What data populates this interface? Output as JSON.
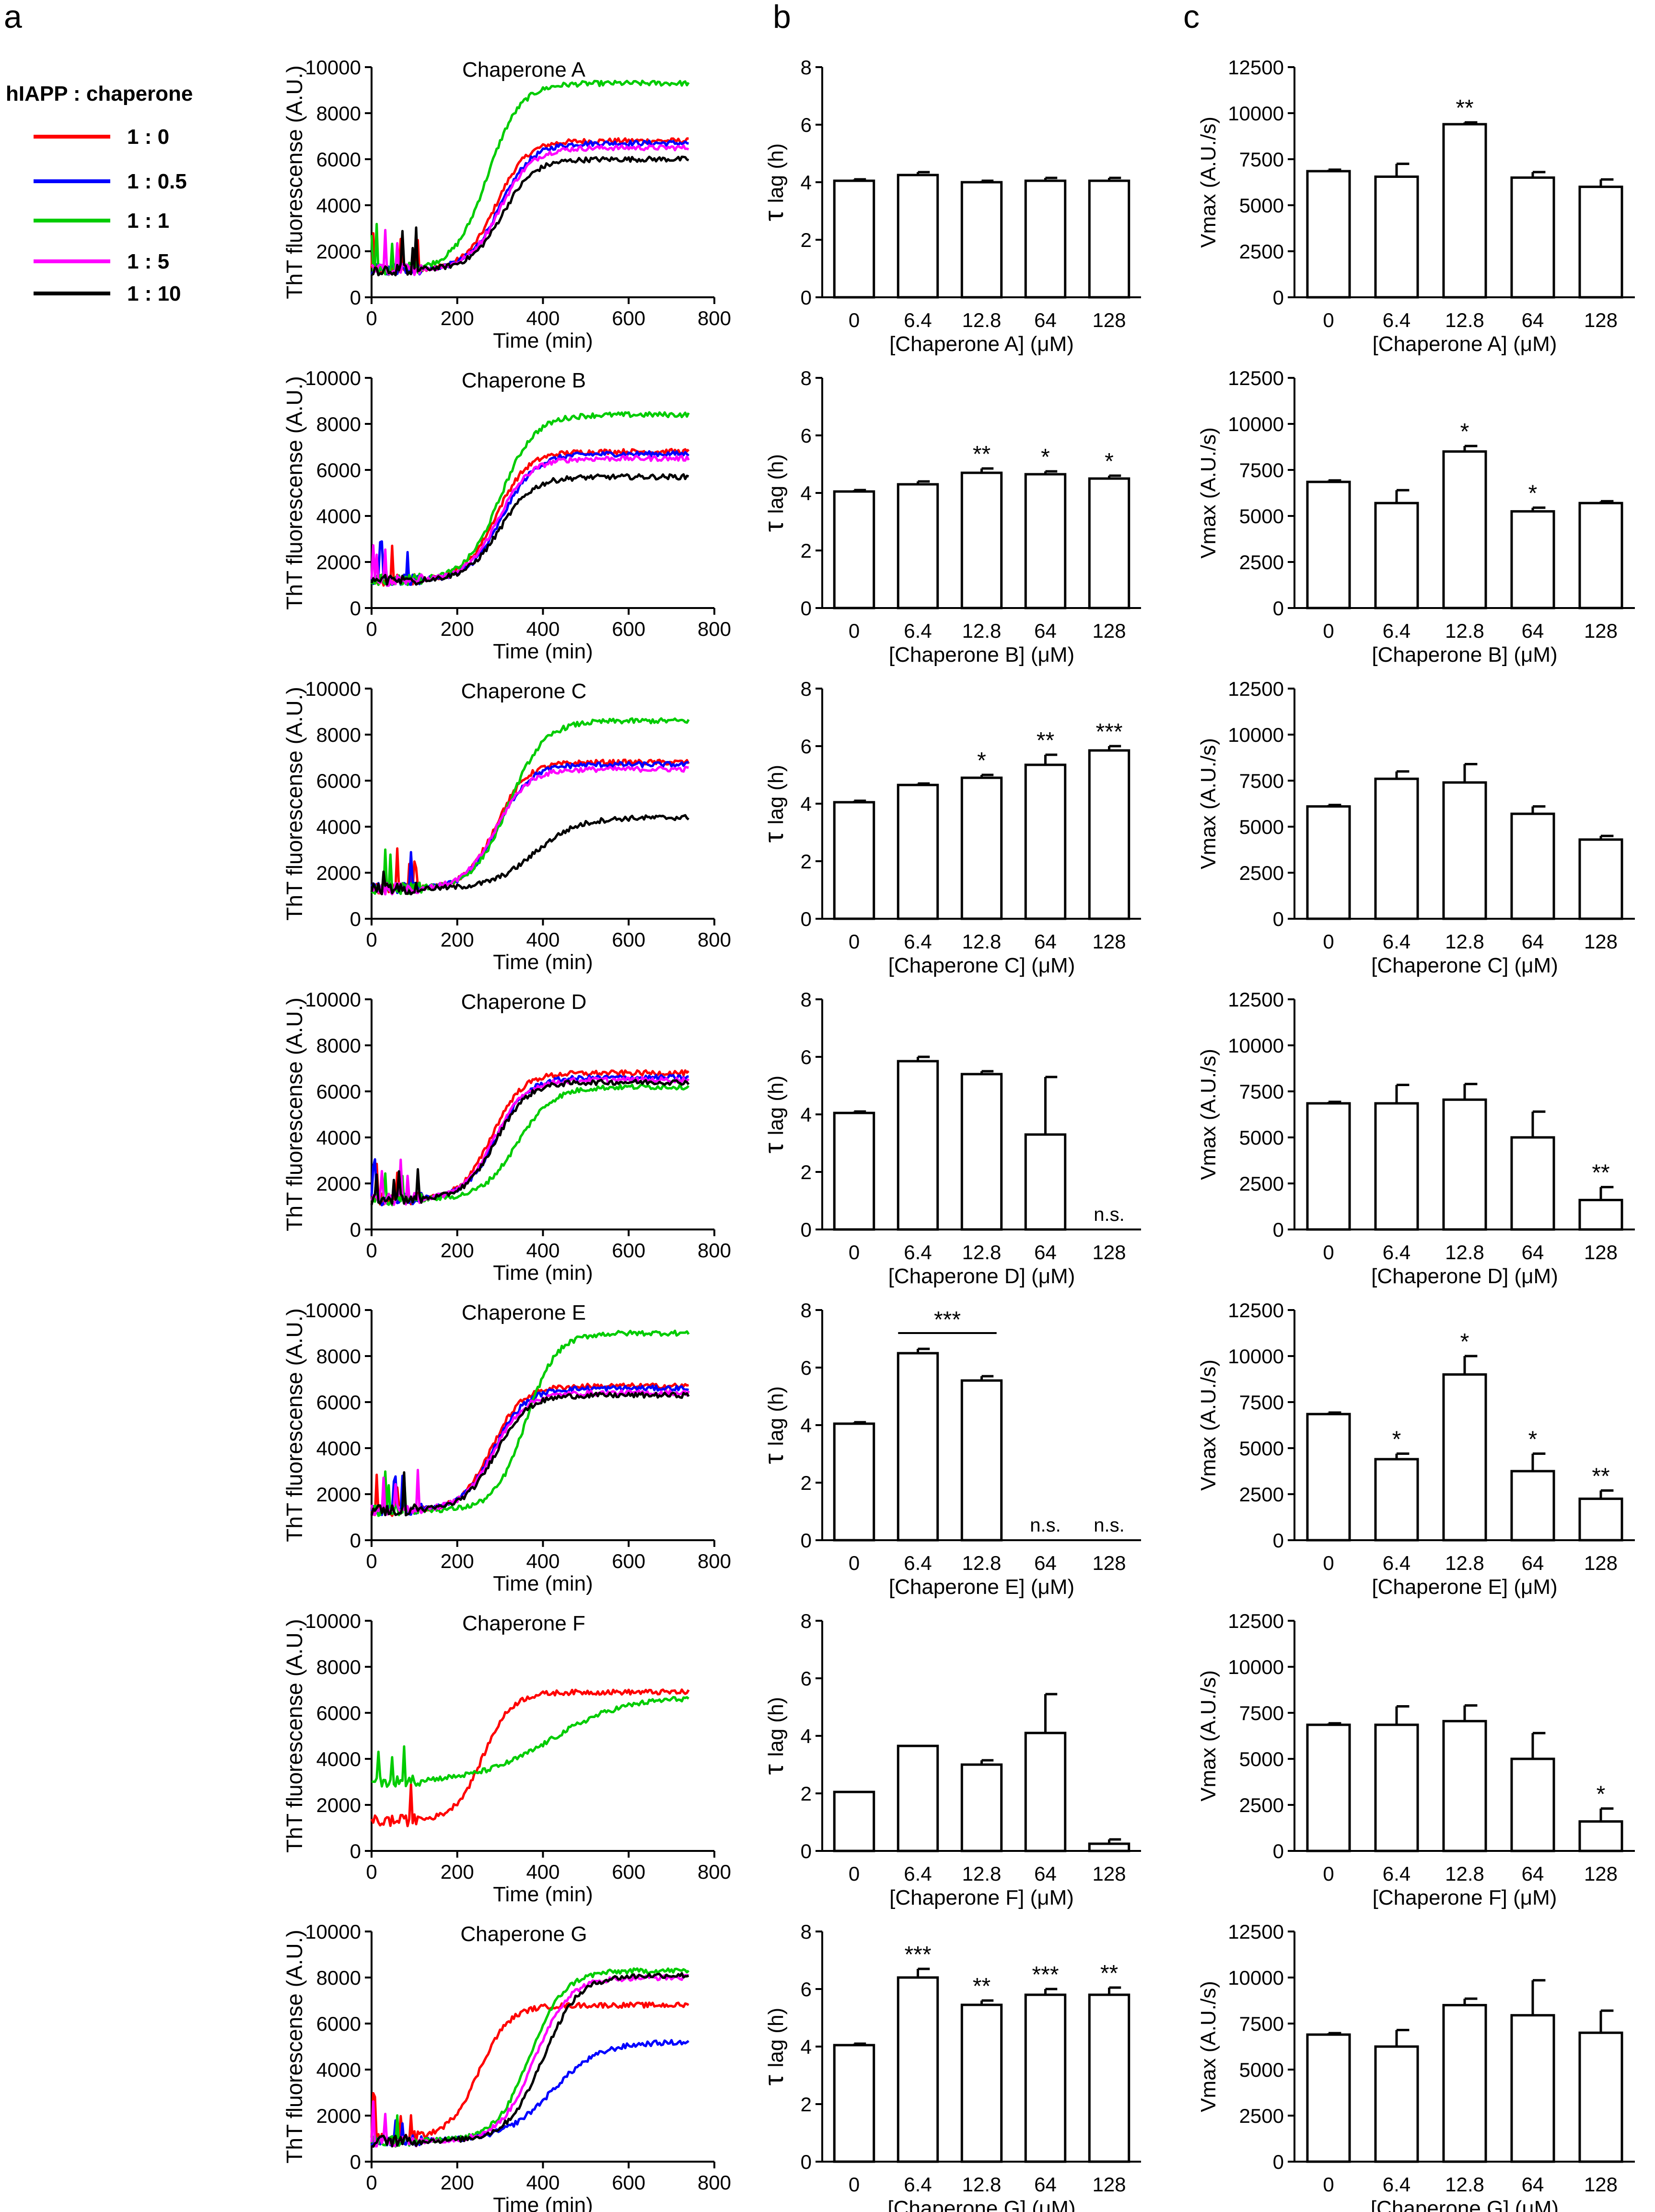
{
  "figure": {
    "panel_labels": {
      "a": "a",
      "b": "b",
      "c": "c"
    },
    "legend": {
      "title": "hIAPP  : chaperone",
      "entries": [
        {
          "label": "1 : 0",
          "color": "#ff0000"
        },
        {
          "label": "1 : 0.5",
          "color": "#0000ff"
        },
        {
          "label": "1 : 1",
          "color": "#00cc00"
        },
        {
          "label": "1 : 5",
          "color": "#ff00ff"
        },
        {
          "label": "1 : 10",
          "color": "#000000"
        }
      ]
    },
    "units": {
      "tau_symbol": "τ",
      "tau_label": "lag (h)",
      "vmax_label": "Vmax (A.U./s)",
      "curve_ylabel": "ThT fluorescense (A.U.)",
      "curve_xlabel": "Time (min)"
    }
  },
  "chart_data": [
    {
      "type": "line",
      "title": "Chaperone A",
      "xlabel": "Time (min)",
      "ylabel": "ThT fluorescense (A.U.)",
      "xlim": [
        0,
        800
      ],
      "ylim": [
        0,
        10000
      ],
      "xticks": [
        0,
        200,
        400,
        600,
        800
      ],
      "yticks": [
        0,
        2000,
        4000,
        6000,
        8000,
        10000
      ],
      "series": [
        {
          "name": "1 : 0",
          "color": "#ff0000",
          "base": 1200,
          "plateau": 6800,
          "mid": 290,
          "k": 0.028
        },
        {
          "name": "1 : 0.5",
          "color": "#0000ff",
          "base": 1200,
          "plateau": 6700,
          "mid": 300,
          "k": 0.027
        },
        {
          "name": "1 : 1",
          "color": "#00cc00",
          "base": 1200,
          "plateau": 9300,
          "mid": 270,
          "k": 0.026
        },
        {
          "name": "1 : 5",
          "color": "#ff00ff",
          "base": 1200,
          "plateau": 6500,
          "mid": 300,
          "k": 0.027
        },
        {
          "name": "1 : 10",
          "color": "#000000",
          "base": 1200,
          "plateau": 6000,
          "mid": 305,
          "k": 0.027
        }
      ]
    },
    {
      "type": "line",
      "title": "Chaperone B",
      "xlabel": "Time (min)",
      "ylabel": "ThT fluorescense (A.U.)",
      "xlim": [
        0,
        800
      ],
      "ylim": [
        0,
        10000
      ],
      "xticks": [
        0,
        200,
        400,
        600,
        800
      ],
      "yticks": [
        0,
        2000,
        4000,
        6000,
        8000,
        10000
      ],
      "series": [
        {
          "name": "1 : 0",
          "color": "#ff0000",
          "base": 1200,
          "plateau": 6800,
          "mid": 290,
          "k": 0.027
        },
        {
          "name": "1 : 0.5",
          "color": "#0000ff",
          "base": 1200,
          "plateau": 6700,
          "mid": 305,
          "k": 0.026
        },
        {
          "name": "1 : 1",
          "color": "#00cc00",
          "base": 1200,
          "plateau": 8400,
          "mid": 300,
          "k": 0.025
        },
        {
          "name": "1 : 5",
          "color": "#ff00ff",
          "base": 1200,
          "plateau": 6500,
          "mid": 295,
          "k": 0.027
        },
        {
          "name": "1 : 10",
          "color": "#000000",
          "base": 1200,
          "plateau": 5700,
          "mid": 300,
          "k": 0.026
        }
      ]
    },
    {
      "type": "line",
      "title": "Chaperone C",
      "xlabel": "Time (min)",
      "ylabel": "ThT fluorescense (A.U.)",
      "xlim": [
        0,
        800
      ],
      "ylim": [
        0,
        10000
      ],
      "xticks": [
        0,
        200,
        400,
        600,
        800
      ],
      "yticks": [
        0,
        2000,
        4000,
        6000,
        8000,
        10000
      ],
      "series": [
        {
          "name": "1 : 0",
          "color": "#ff0000",
          "base": 1300,
          "plateau": 6800,
          "mid": 290,
          "k": 0.028
        },
        {
          "name": "1 : 0.5",
          "color": "#0000ff",
          "base": 1300,
          "plateau": 6700,
          "mid": 295,
          "k": 0.027
        },
        {
          "name": "1 : 1",
          "color": "#00cc00",
          "base": 1300,
          "plateau": 8600,
          "mid": 320,
          "k": 0.024
        },
        {
          "name": "1 : 5",
          "color": "#ff00ff",
          "base": 1300,
          "plateau": 6500,
          "mid": 290,
          "k": 0.027
        },
        {
          "name": "1 : 10",
          "color": "#000000",
          "base": 1300,
          "plateau": 4400,
          "mid": 380,
          "k": 0.02
        }
      ]
    },
    {
      "type": "line",
      "title": "Chaperone D",
      "xlabel": "Time (min)",
      "ylabel": "ThT fluorescense (A.U.)",
      "xlim": [
        0,
        800
      ],
      "ylim": [
        0,
        10000
      ],
      "xticks": [
        0,
        200,
        400,
        600,
        800
      ],
      "yticks": [
        0,
        2000,
        4000,
        6000,
        8000,
        10000
      ],
      "series": [
        {
          "name": "1 : 0",
          "color": "#ff0000",
          "base": 1300,
          "plateau": 6800,
          "mid": 280,
          "k": 0.028
        },
        {
          "name": "1 : 0.5",
          "color": "#0000ff",
          "base": 1300,
          "plateau": 6600,
          "mid": 290,
          "k": 0.027
        },
        {
          "name": "1 : 1",
          "color": "#00cc00",
          "base": 1300,
          "plateau": 6200,
          "mid": 340,
          "k": 0.024
        },
        {
          "name": "1 : 5",
          "color": "#ff00ff",
          "base": 1300,
          "plateau": 6500,
          "mid": 285,
          "k": 0.027
        },
        {
          "name": "1 : 10",
          "color": "#000000",
          "base": 1300,
          "plateau": 6400,
          "mid": 290,
          "k": 0.027
        }
      ]
    },
    {
      "type": "line",
      "title": "Chaperone E",
      "xlabel": "Time (min)",
      "ylabel": "ThT fluorescense (A.U.)",
      "xlim": [
        0,
        800
      ],
      "ylim": [
        0,
        10000
      ],
      "xticks": [
        0,
        200,
        400,
        600,
        800
      ],
      "yticks": [
        0,
        2000,
        4000,
        6000,
        8000,
        10000
      ],
      "series": [
        {
          "name": "1 : 0",
          "color": "#ff0000",
          "base": 1300,
          "plateau": 6700,
          "mid": 280,
          "k": 0.028
        },
        {
          "name": "1 : 0.5",
          "color": "#0000ff",
          "base": 1300,
          "plateau": 6600,
          "mid": 285,
          "k": 0.027
        },
        {
          "name": "1 : 1",
          "color": "#00cc00",
          "base": 1300,
          "plateau": 9000,
          "mid": 360,
          "k": 0.028
        },
        {
          "name": "1 : 5",
          "color": "#ff00ff",
          "base": 1300,
          "plateau": 6400,
          "mid": 285,
          "k": 0.027
        },
        {
          "name": "1 : 10",
          "color": "#000000",
          "base": 1300,
          "plateau": 6300,
          "mid": 290,
          "k": 0.027
        }
      ]
    },
    {
      "type": "line",
      "title": "Chaperone F",
      "xlabel": "Time (min)",
      "ylabel": "ThT fluorescense (A.U.)",
      "xlim": [
        0,
        800
      ],
      "ylim": [
        0,
        10000
      ],
      "xticks": [
        0,
        200,
        400,
        600,
        800
      ],
      "yticks": [
        0,
        2000,
        4000,
        6000,
        8000,
        10000
      ],
      "series": [
        {
          "name": "1 : 0",
          "color": "#ff0000",
          "base": 1300,
          "plateau": 6900,
          "mid": 260,
          "k": 0.03
        },
        {
          "name": "1 : 1",
          "color": "#00cc00",
          "base": 3000,
          "plateau": 6700,
          "mid": 420,
          "k": 0.012
        }
      ]
    },
    {
      "type": "line",
      "title": "Chaperone G",
      "xlabel": "Time (min)",
      "ylabel": "ThT fluorescense (A.U.)",
      "xlim": [
        0,
        800
      ],
      "ylim": [
        0,
        10000
      ],
      "xticks": [
        0,
        200,
        400,
        600,
        800
      ],
      "yticks": [
        0,
        2000,
        4000,
        6000,
        8000,
        10000
      ],
      "series": [
        {
          "name": "1 : 0",
          "color": "#ff0000",
          "base": 1000,
          "plateau": 6800,
          "mid": 250,
          "k": 0.028
        },
        {
          "name": "1 : 0.5",
          "color": "#0000ff",
          "base": 900,
          "plateau": 5200,
          "mid": 420,
          "k": 0.018
        },
        {
          "name": "1 : 1",
          "color": "#00cc00",
          "base": 900,
          "plateau": 8300,
          "mid": 370,
          "k": 0.025
        },
        {
          "name": "1 : 5",
          "color": "#ff00ff",
          "base": 900,
          "plateau": 8000,
          "mid": 380,
          "k": 0.025
        },
        {
          "name": "1 : 10",
          "color": "#000000",
          "base": 900,
          "plateau": 8100,
          "mid": 400,
          "k": 0.024
        }
      ]
    },
    {
      "type": "bar",
      "xlabel": "[Chaperone A] (μM)",
      "ylabel": "τ lag (h)",
      "categories": [
        "0",
        "6.4",
        "12.8",
        "64",
        "128"
      ],
      "values": [
        4.05,
        4.25,
        4.0,
        4.05,
        4.05
      ],
      "errors": [
        0.05,
        0.1,
        0.05,
        0.1,
        0.1
      ],
      "significance": [
        "",
        "",
        "",
        "",
        ""
      ],
      "ylim": [
        0,
        8
      ],
      "yticks": [
        0,
        2,
        4,
        6,
        8
      ]
    },
    {
      "type": "bar",
      "xlabel": "[Chaperone B] (μM)",
      "ylabel": "τ lag (h)",
      "categories": [
        "0",
        "6.4",
        "12.8",
        "64",
        "128"
      ],
      "values": [
        4.05,
        4.3,
        4.7,
        4.65,
        4.5
      ],
      "errors": [
        0.05,
        0.1,
        0.15,
        0.1,
        0.1
      ],
      "significance": [
        "",
        "",
        "**",
        "*",
        "*"
      ],
      "ylim": [
        0,
        8
      ],
      "yticks": [
        0,
        2,
        4,
        6,
        8
      ]
    },
    {
      "type": "bar",
      "xlabel": "[Chaperone C] (μM)",
      "ylabel": "τ lag (h)",
      "categories": [
        "0",
        "6.4",
        "12.8",
        "64",
        "128"
      ],
      "values": [
        4.05,
        4.65,
        4.9,
        5.35,
        5.85
      ],
      "errors": [
        0.05,
        0.05,
        0.1,
        0.35,
        0.15
      ],
      "significance": [
        "",
        "",
        "*",
        "**",
        "***"
      ],
      "ylim": [
        0,
        8
      ],
      "yticks": [
        0,
        2,
        4,
        6,
        8
      ]
    },
    {
      "type": "bar",
      "xlabel": "[Chaperone D] (μM)",
      "ylabel": "τ lag (h)",
      "categories": [
        "0",
        "6.4",
        "12.8",
        "64",
        "128"
      ],
      "values": [
        4.05,
        5.85,
        5.4,
        3.3,
        null
      ],
      "errors": [
        0.05,
        0.15,
        0.1,
        2.0,
        0
      ],
      "significance": [
        "",
        "",
        "",
        "",
        "n.s."
      ],
      "ylim": [
        0,
        8
      ],
      "yticks": [
        0,
        2,
        4,
        6,
        8
      ]
    },
    {
      "type": "bar",
      "xlabel": "[Chaperone E] (μM)",
      "ylabel": "τ lag (h)",
      "categories": [
        "0",
        "6.4",
        "12.8",
        "64",
        "128"
      ],
      "values": [
        4.05,
        6.5,
        5.55,
        null,
        null
      ],
      "errors": [
        0.05,
        0.15,
        0.15,
        0,
        0
      ],
      "significance": [
        "",
        "",
        "",
        "n.s.",
        "n.s."
      ],
      "bracket": {
        "from": 1,
        "to": 2,
        "label": "***"
      },
      "ylim": [
        0,
        8
      ],
      "yticks": [
        0,
        2,
        4,
        6,
        8
      ]
    },
    {
      "type": "bar",
      "xlabel": "[Chaperone F] (μM)",
      "ylabel": "τ lag (h)",
      "categories": [
        "0",
        "6.4",
        "12.8",
        "64",
        "128"
      ],
      "values": [
        2.05,
        3.65,
        3.0,
        4.1,
        0.25
      ],
      "errors": [
        0,
        0,
        0.15,
        1.35,
        0.15
      ],
      "significance": [
        "",
        "",
        "",
        "",
        ""
      ],
      "ylim": [
        0,
        8
      ],
      "yticks": [
        0,
        2,
        4,
        6,
        8
      ]
    },
    {
      "type": "bar",
      "xlabel": "[Chaperone G] (μM)",
      "ylabel": "τ lag (h)",
      "categories": [
        "0",
        "6.4",
        "12.8",
        "64",
        "128"
      ],
      "values": [
        4.05,
        6.4,
        5.45,
        5.8,
        5.8
      ],
      "errors": [
        0.05,
        0.3,
        0.15,
        0.2,
        0.25
      ],
      "significance": [
        "",
        "***",
        "**",
        "***",
        "**"
      ],
      "ylim": [
        0,
        8
      ],
      "yticks": [
        0,
        2,
        4,
        6,
        8
      ]
    },
    {
      "type": "bar",
      "xlabel": "[Chaperone A] (μM)",
      "ylabel": "Vmax (A.U./s)",
      "categories": [
        "0",
        "6.4",
        "12.8",
        "64",
        "128"
      ],
      "values": [
        6850,
        6550,
        9400,
        6500,
        6000
      ],
      "errors": [
        80,
        700,
        100,
        300,
        400
      ],
      "significance": [
        "",
        "",
        "**",
        "",
        ""
      ],
      "ylim": [
        0,
        12500
      ],
      "yticks": [
        0,
        2500,
        5000,
        7500,
        10000,
        12500
      ]
    },
    {
      "type": "bar",
      "xlabel": "[Chaperone B] (μM)",
      "ylabel": "Vmax (A.U./s)",
      "categories": [
        "0",
        "6.4",
        "12.8",
        "64",
        "128"
      ],
      "values": [
        6850,
        5700,
        8500,
        5250,
        5700
      ],
      "errors": [
        80,
        700,
        300,
        200,
        100
      ],
      "significance": [
        "",
        "",
        "*",
        "*",
        ""
      ],
      "ylim": [
        0,
        12500
      ],
      "yticks": [
        0,
        2500,
        5000,
        7500,
        10000,
        12500
      ]
    },
    {
      "type": "bar",
      "xlabel": "[Chaperone C] (μM)",
      "ylabel": "Vmax (A.U./s)",
      "categories": [
        "0",
        "6.4",
        "12.8",
        "64",
        "128"
      ],
      "values": [
        6100,
        7600,
        7400,
        5700,
        4300
      ],
      "errors": [
        80,
        400,
        1000,
        400,
        200
      ],
      "significance": [
        "",
        "",
        "",
        "",
        ""
      ],
      "ylim": [
        0,
        12500
      ],
      "yticks": [
        0,
        2500,
        5000,
        7500,
        10000,
        12500
      ]
    },
    {
      "type": "bar",
      "xlabel": "[Chaperone D] (μM)",
      "ylabel": "Vmax (A.U./s)",
      "categories": [
        "0",
        "6.4",
        "12.8",
        "64",
        "128"
      ],
      "values": [
        6850,
        6850,
        7050,
        5000,
        1600
      ],
      "errors": [
        80,
        1000,
        850,
        1400,
        700
      ],
      "significance": [
        "",
        "",
        "",
        "",
        "**"
      ],
      "ylim": [
        0,
        12500
      ],
      "yticks": [
        0,
        2500,
        5000,
        7500,
        10000,
        12500
      ]
    },
    {
      "type": "bar",
      "xlabel": "[Chaperone E] (μM)",
      "ylabel": "Vmax (A.U./s)",
      "categories": [
        "0",
        "6.4",
        "12.8",
        "64",
        "128"
      ],
      "values": [
        6850,
        4400,
        9000,
        3750,
        2250
      ],
      "errors": [
        80,
        300,
        1000,
        950,
        450
      ],
      "significance": [
        "",
        "*",
        "*",
        "*",
        "**"
      ],
      "ylim": [
        0,
        12500
      ],
      "yticks": [
        0,
        2500,
        5000,
        7500,
        10000,
        12500
      ]
    },
    {
      "type": "bar",
      "xlabel": "[Chaperone F] (μM)",
      "ylabel": "Vmax (A.U./s)",
      "categories": [
        "0",
        "6.4",
        "12.8",
        "64",
        "128"
      ],
      "values": [
        6850,
        6850,
        7050,
        5000,
        1600
      ],
      "errors": [
        80,
        1000,
        850,
        1400,
        700
      ],
      "significance": [
        "",
        "",
        "",
        "",
        "*"
      ],
      "ylim": [
        0,
        12500
      ],
      "yticks": [
        0,
        2500,
        5000,
        7500,
        10000,
        12500
      ]
    },
    {
      "type": "bar",
      "xlabel": "[Chaperone G] (μM)",
      "ylabel": "Vmax (A.U./s)",
      "categories": [
        "0",
        "6.4",
        "12.8",
        "64",
        "128"
      ],
      "values": [
        6900,
        6250,
        8500,
        7950,
        7000
      ],
      "errors": [
        80,
        900,
        350,
        1900,
        1200
      ],
      "significance": [
        "",
        "",
        "",
        "",
        ""
      ],
      "ylim": [
        0,
        12500
      ],
      "yticks": [
        0,
        2500,
        5000,
        7500,
        10000,
        12500
      ]
    }
  ]
}
